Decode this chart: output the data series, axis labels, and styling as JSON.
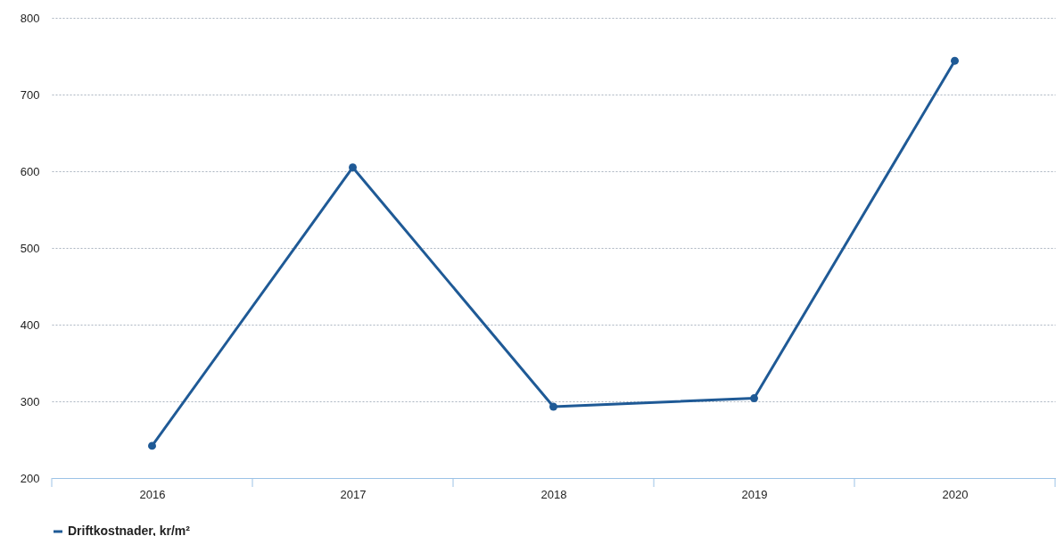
{
  "chart_data": {
    "type": "line",
    "categories": [
      "2016",
      "2017",
      "2018",
      "2019",
      "2020"
    ],
    "series": [
      {
        "name": "Driftkostnader, kr/m²",
        "color": "#1f5a96",
        "values": [
          242,
          605,
          293,
          304,
          744
        ]
      }
    ],
    "ylim": [
      200,
      800
    ],
    "yticks": [
      200,
      300,
      400,
      500,
      600,
      700,
      800
    ],
    "grid": "y",
    "legend": "bottom",
    "marker": "circle",
    "line_style": "solid"
  }
}
